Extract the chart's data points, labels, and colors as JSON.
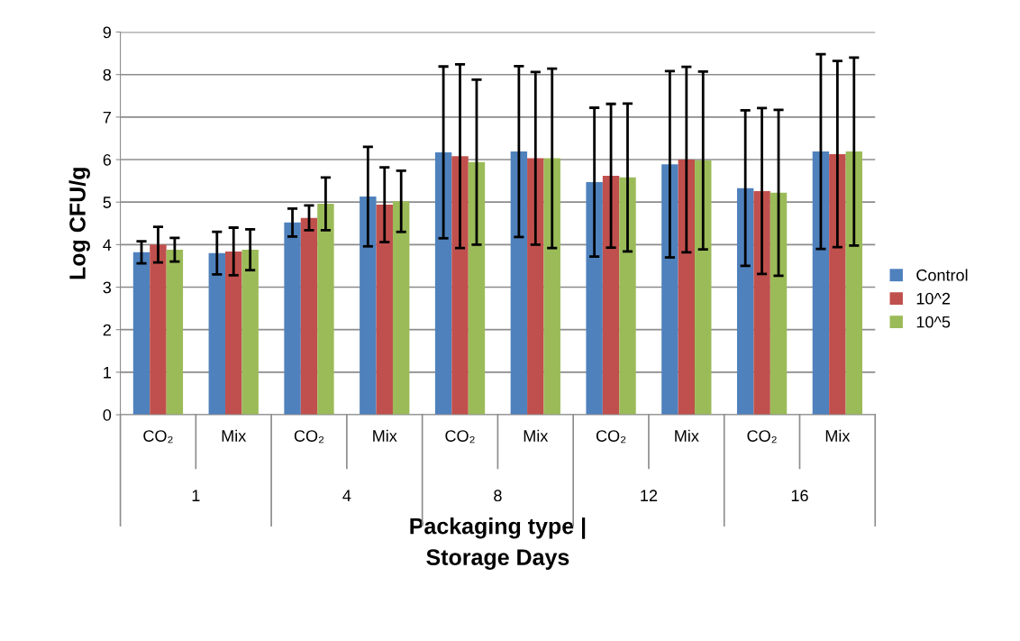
{
  "chart_data": {
    "type": "bar",
    "ylabel": "Log CFU/g",
    "xlabel": "Packaging type |\nStorage Days",
    "categories": [
      "CO₂",
      "Mix",
      "CO₂",
      "Mix",
      "CO₂",
      "Mix",
      "CO₂",
      "Mix",
      "CO₂",
      "Mix"
    ],
    "annotations": [
      "1",
      "4",
      "8",
      "12",
      "16"
    ],
    "series": [
      {
        "name": "Control",
        "color": "#4f81bd",
        "values": [
          3.82,
          3.8,
          4.52,
          5.13,
          6.17,
          6.19,
          5.47,
          5.89,
          5.33,
          6.19
        ],
        "errors": [
          0.26,
          0.5,
          0.33,
          1.17,
          2.02,
          2.01,
          1.75,
          2.19,
          1.83,
          2.29
        ]
      },
      {
        "name": "10^2",
        "color": "#c0504d",
        "values": [
          4.0,
          3.84,
          4.63,
          4.94,
          6.08,
          6.03,
          5.62,
          6.0,
          5.26,
          6.13
        ],
        "errors": [
          0.42,
          0.56,
          0.29,
          0.88,
          2.16,
          2.03,
          1.69,
          2.18,
          1.95,
          2.19
        ]
      },
      {
        "name": "10^5",
        "color": "#9bbb59",
        "values": [
          3.88,
          3.88,
          4.96,
          5.02,
          5.94,
          6.03,
          5.58,
          5.98,
          5.22,
          6.19
        ],
        "errors": [
          0.28,
          0.48,
          0.62,
          0.72,
          1.94,
          2.11,
          1.74,
          2.09,
          1.95,
          2.21
        ]
      }
    ],
    "ylim": [
      0,
      9
    ],
    "yticks": [
      0,
      1,
      2,
      3,
      4,
      5,
      6,
      7,
      8,
      9
    ],
    "grid": "y",
    "legend": "right"
  }
}
